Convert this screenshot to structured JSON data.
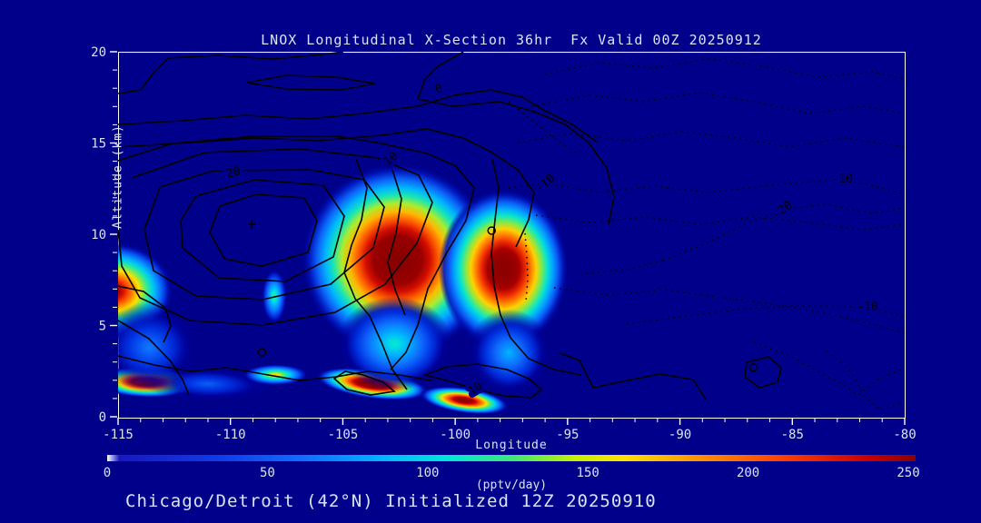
{
  "title": "LNOX Longitudinal X-Section 36hr  Fx Valid 00Z 20250912",
  "caption": "Chicago/Detroit (42°N) Initialized 12Z 20250910",
  "colors": {
    "background": "#00008B",
    "text": "#D9E4F4",
    "frame": "#FFFFFF",
    "contour_line": "#000000",
    "peak_fill": "#7A0000"
  },
  "chart_data": {
    "type": "heatmap",
    "title": "LNOX Longitudinal X-Section 36hr  Fx Valid 00Z 20250912",
    "subtitle": "Chicago/Detroit (42°N) Initialized 12Z 20250910",
    "xlabel": "Longitude",
    "ylabel": "Altitude (km)",
    "xlim": [
      -115,
      -80
    ],
    "ylim": [
      0,
      20
    ],
    "x_ticks": [
      -115,
      -110,
      -105,
      -100,
      -95,
      -90,
      -85,
      -80
    ],
    "x_minor_step": 1,
    "y_ticks": [
      0,
      5,
      10,
      15,
      20
    ],
    "y_minor_step": 1,
    "grid": false,
    "colorbar": {
      "label": "(pptv/day)",
      "range": [
        0,
        250
      ],
      "ticks": [
        0,
        50,
        100,
        150,
        200,
        250
      ],
      "orientation": "horizontal",
      "gradient_stops_pct": [
        [
          0,
          "#FFFFFF"
        ],
        [
          1.5,
          "#1818C0"
        ],
        [
          14,
          "#0F3CE8"
        ],
        [
          24,
          "#0F6DFF"
        ],
        [
          34,
          "#00B4FF"
        ],
        [
          42,
          "#00E6DC"
        ],
        [
          50,
          "#3CE878"
        ],
        [
          58,
          "#C8F000"
        ],
        [
          64,
          "#FFE100"
        ],
        [
          74,
          "#FF8C00"
        ],
        [
          84,
          "#FF3C00"
        ],
        [
          94,
          "#C80000"
        ],
        [
          100,
          "#8B0000"
        ]
      ],
      "value_colormap": [
        [
          0,
          "#00008B"
        ],
        [
          18,
          "#0000A0"
        ],
        [
          38,
          "#0030E0"
        ],
        [
          60,
          "#0F6DFF"
        ],
        [
          85,
          "#00B4FF"
        ],
        [
          105,
          "#00E6DC"
        ],
        [
          125,
          "#3CE878"
        ],
        [
          143,
          "#B4EC28"
        ],
        [
          158,
          "#FFE100"
        ],
        [
          183,
          "#FF8C00"
        ],
        [
          208,
          "#FF3C00"
        ],
        [
          232,
          "#C80000"
        ],
        [
          250,
          "#990000"
        ],
        [
          400,
          "#7A0000"
        ]
      ]
    },
    "heat_features": [
      {
        "name": "main-plume-west",
        "lon": -102.55,
        "alt": 8.6,
        "rx_deg": 4.3,
        "ry_km": 5.3,
        "rot": 0,
        "peak": 340
      },
      {
        "name": "main-plume-east",
        "lon": -97.85,
        "alt": 8.1,
        "rx_deg": 2.9,
        "ry_km": 4.4,
        "rot": 0,
        "peak": 325
      },
      {
        "name": "west-boundary-maximum",
        "lon": -115.2,
        "alt": 6.9,
        "rx_deg": 2.7,
        "ry_km": 2.7,
        "rot": 0,
        "peak": 270
      },
      {
        "name": "west-lowlevel-streak",
        "lon": -113.8,
        "alt": 1.9,
        "rx_deg": 2.3,
        "ry_km": 0.85,
        "rot": 2,
        "peak": 330
      },
      {
        "name": "west-lowlevel-halo",
        "lon": -111.0,
        "alt": 1.8,
        "rx_deg": 3.0,
        "ry_km": 1.0,
        "rot": 2,
        "peak": 55
      },
      {
        "name": "west-midlevel-halo",
        "lon": -113.6,
        "alt": 3.8,
        "rx_deg": 2.3,
        "ry_km": 2.5,
        "rot": 0,
        "peak": 65
      },
      {
        "name": "midlevel-lens",
        "lon": -108.05,
        "alt": 6.6,
        "rx_deg": 0.6,
        "ry_km": 1.6,
        "rot": 0,
        "peak": 125
      },
      {
        "name": "lowlevel-spot",
        "lon": -108.0,
        "alt": 2.3,
        "rx_deg": 1.5,
        "ry_km": 0.6,
        "rot": 0,
        "peak": 170
      },
      {
        "name": "central-surface-streak-w",
        "lon": -103.7,
        "alt": 1.8,
        "rx_deg": 2.5,
        "ry_km": 0.8,
        "rot": 8,
        "peak": 345
      },
      {
        "name": "central-surface-streak-e",
        "lon": -99.6,
        "alt": 0.9,
        "rx_deg": 2.0,
        "ry_km": 0.7,
        "rot": 8,
        "peak": 310
      },
      {
        "name": "main-west-low-halo",
        "lon": -102.7,
        "alt": 4.0,
        "rx_deg": 2.6,
        "ry_km": 2.6,
        "rot": 0,
        "peak": 110
      },
      {
        "name": "main-east-low-halo",
        "lon": -97.6,
        "alt": 3.5,
        "rx_deg": 1.9,
        "ry_km": 2.4,
        "rot": 0,
        "peak": 85
      }
    ],
    "contour_labels": [
      {
        "value": "0",
        "lon": -100.73,
        "alt": 17.96,
        "rot": -15
      },
      {
        "value": "20",
        "lon": -109.87,
        "alt": 13.38,
        "rot": -15
      },
      {
        "value": "10",
        "lon": -102.87,
        "alt": 14.13,
        "rot": -40
      },
      {
        "value": "10",
        "lon": -99.11,
        "alt": 1.54,
        "rot": -30
      },
      {
        "value": "-10",
        "lon": -96.0,
        "alt": 12.79,
        "rot": -40
      },
      {
        "value": "-10",
        "lon": -82.78,
        "alt": 13.03,
        "rot": 0
      },
      {
        "value": "-20",
        "lon": -85.45,
        "alt": 11.34,
        "rot": -35
      },
      {
        "value": "-10",
        "lon": -81.65,
        "alt": 6.02,
        "rot": 0
      }
    ],
    "contour_markers": [
      {
        "type": "plus",
        "lon": -109.05,
        "alt": 10.55
      },
      {
        "type": "circle",
        "lon": -98.38,
        "alt": 10.2
      },
      {
        "type": "circle",
        "lon": -108.6,
        "alt": 3.53
      },
      {
        "type": "circle",
        "lon": -86.73,
        "alt": 2.69
      }
    ],
    "contour_style_note": "solid black = positive levels (0,10,20...), dotted black = negative levels (-10,-20)"
  }
}
